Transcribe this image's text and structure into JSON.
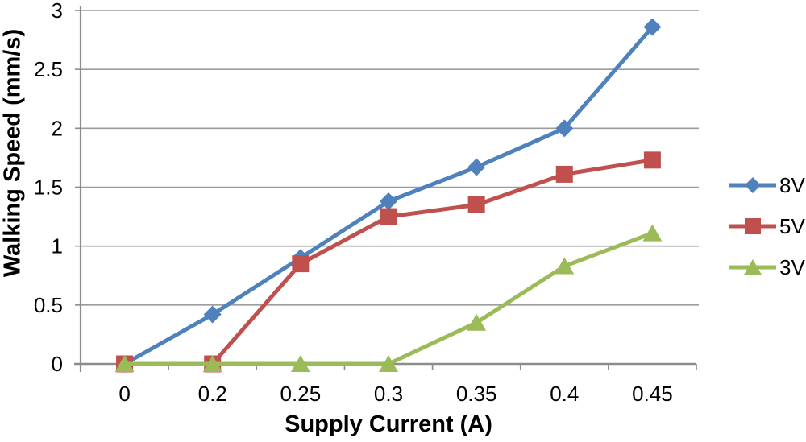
{
  "chart_data": {
    "type": "line",
    "title": "",
    "xlabel": "Supply Current (A)",
    "ylabel": "Walking Speed (mm/s)",
    "categories": [
      "0",
      "0.2",
      "0.25",
      "0.3",
      "0.35",
      "0.4",
      "0.45"
    ],
    "y_ticks": [
      0,
      0.5,
      1,
      1.5,
      2,
      2.5,
      3
    ],
    "ylim": [
      0,
      3
    ],
    "grid": true,
    "legend_position": "right",
    "series": [
      {
        "name": "8V",
        "marker": "diamond",
        "color": "#4F81BD",
        "values": [
          0,
          0.42,
          0.9,
          1.38,
          1.67,
          2.0,
          2.86
        ]
      },
      {
        "name": "5V",
        "marker": "square",
        "color": "#C0504D",
        "values": [
          0,
          0,
          0.85,
          1.25,
          1.35,
          1.61,
          1.73
        ]
      },
      {
        "name": "3V",
        "marker": "triangle",
        "color": "#9BBB59",
        "values": [
          0,
          0,
          0,
          0,
          0.35,
          0.83,
          1.11
        ]
      }
    ],
    "colors": {
      "axis": "#8C8C8C",
      "grid": "#9C9C9C",
      "text": "#000000",
      "background": "#FFFFFF"
    }
  }
}
